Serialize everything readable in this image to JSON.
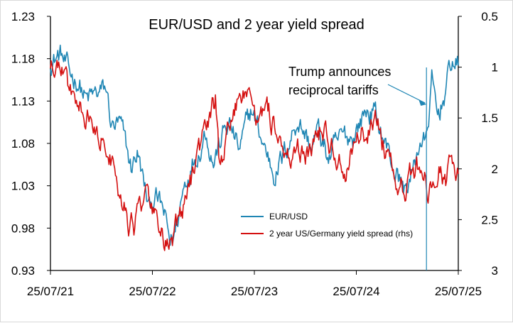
{
  "chart_data": {
    "type": "line",
    "title": "EUR/USD and 2 year yield spread",
    "xlabel": "",
    "ylabel": "",
    "x_tick_labels": [
      "25/07/21",
      "25/07/22",
      "25/07/23",
      "25/07/24",
      "25/07/25"
    ],
    "x_range": [
      "2021-07-25",
      "2025-07-25"
    ],
    "y_left": {
      "range": [
        0.93,
        1.23
      ],
      "ticks": [
        "0.93",
        "0.98",
        "1.03",
        "1.08",
        "1.13",
        "1.18",
        "1.23"
      ]
    },
    "y_right": {
      "range": [
        0.5,
        3
      ],
      "inverted": true,
      "ticks": [
        "0.5",
        "1",
        "1.5",
        "2",
        "2.5",
        "3"
      ]
    },
    "legend_position": "bottom-center",
    "annotation": {
      "text_lines": [
        "Trump announces",
        "reciprocal tariffs"
      ],
      "date": "2025-04-02"
    },
    "series": [
      {
        "name": "EUR/USD",
        "axis": "left",
        "color": "#1f86b4",
        "points": [
          [
            "2021-07-25",
            1.178
          ],
          [
            "2021-09-01",
            1.185
          ],
          [
            "2021-10-01",
            1.16
          ],
          [
            "2021-11-01",
            1.155
          ],
          [
            "2021-12-01",
            1.13
          ],
          [
            "2022-01-01",
            1.136
          ],
          [
            "2022-02-10",
            1.143
          ],
          [
            "2022-03-01",
            1.1
          ],
          [
            "2022-04-01",
            1.1
          ],
          [
            "2022-05-10",
            1.05
          ],
          [
            "2022-06-01",
            1.07
          ],
          [
            "2022-07-14",
            1.0
          ],
          [
            "2022-08-01",
            1.02
          ],
          [
            "2022-09-01",
            1.0
          ],
          [
            "2022-09-27",
            0.963
          ],
          [
            "2022-10-15",
            0.975
          ],
          [
            "2022-11-15",
            1.03
          ],
          [
            "2022-12-15",
            1.06
          ],
          [
            "2023-01-15",
            1.08
          ],
          [
            "2023-02-01",
            1.098
          ],
          [
            "2023-03-01",
            1.06
          ],
          [
            "2023-04-15",
            1.1
          ],
          [
            "2023-05-01",
            1.1
          ],
          [
            "2023-06-01",
            1.07
          ],
          [
            "2023-07-15",
            1.12
          ],
          [
            "2023-08-15",
            1.09
          ],
          [
            "2023-10-03",
            1.047
          ],
          [
            "2023-11-01",
            1.06
          ],
          [
            "2023-12-28",
            1.11
          ],
          [
            "2024-02-15",
            1.075
          ],
          [
            "2024-03-08",
            1.095
          ],
          [
            "2024-04-16",
            1.062
          ],
          [
            "2024-06-01",
            1.085
          ],
          [
            "2024-07-15",
            1.09
          ],
          [
            "2024-08-26",
            1.118
          ],
          [
            "2024-09-25",
            1.118
          ],
          [
            "2024-11-01",
            1.085
          ],
          [
            "2024-12-01",
            1.055
          ],
          [
            "2025-01-13",
            1.025
          ],
          [
            "2025-02-15",
            1.048
          ],
          [
            "2025-03-10",
            1.085
          ],
          [
            "2025-04-01",
            1.08
          ],
          [
            "2025-04-21",
            1.15
          ],
          [
            "2025-05-12",
            1.11
          ],
          [
            "2025-06-01",
            1.135
          ],
          [
            "2025-06-15",
            1.15
          ],
          [
            "2025-07-01",
            1.178
          ],
          [
            "2025-07-25",
            1.172
          ]
        ]
      },
      {
        "name": "2 year US/Germany yield spread (rhs)",
        "axis": "right",
        "color": "#d41010",
        "points": [
          [
            "2021-07-25",
            1.0
          ],
          [
            "2021-09-01",
            1.0
          ],
          [
            "2021-10-01",
            1.2
          ],
          [
            "2021-11-01",
            1.4
          ],
          [
            "2021-12-01",
            1.45
          ],
          [
            "2022-01-01",
            1.6
          ],
          [
            "2022-02-01",
            1.7
          ],
          [
            "2022-03-01",
            1.9
          ],
          [
            "2022-03-15",
            2.1
          ],
          [
            "2022-04-15",
            2.35
          ],
          [
            "2022-05-01",
            2.5
          ],
          [
            "2022-05-20",
            2.55
          ],
          [
            "2022-06-15",
            2.4
          ],
          [
            "2022-07-10",
            2.3
          ],
          [
            "2022-08-15",
            2.5
          ],
          [
            "2022-09-10",
            2.7
          ],
          [
            "2022-10-05",
            2.78
          ],
          [
            "2022-11-01",
            2.5
          ],
          [
            "2022-12-01",
            2.2
          ],
          [
            "2023-01-01",
            2.0
          ],
          [
            "2023-02-01",
            1.7
          ],
          [
            "2023-03-08",
            1.35
          ],
          [
            "2023-03-20",
            1.9
          ],
          [
            "2023-04-20",
            1.7
          ],
          [
            "2023-05-15",
            1.4
          ],
          [
            "2023-06-15",
            1.3
          ],
          [
            "2023-07-01",
            1.35
          ],
          [
            "2023-08-15",
            1.5
          ],
          [
            "2023-09-15",
            1.5
          ],
          [
            "2023-10-15",
            1.6
          ],
          [
            "2023-11-15",
            1.8
          ],
          [
            "2023-12-15",
            1.9
          ],
          [
            "2024-01-15",
            1.8
          ],
          [
            "2024-02-15",
            1.8
          ],
          [
            "2024-03-15",
            1.65
          ],
          [
            "2024-04-15",
            1.75
          ],
          [
            "2024-05-15",
            1.9
          ],
          [
            "2024-06-15",
            1.95
          ],
          [
            "2024-07-15",
            1.8
          ],
          [
            "2024-08-15",
            1.65
          ],
          [
            "2024-09-15",
            1.55
          ],
          [
            "2024-10-10",
            1.45
          ],
          [
            "2024-10-25",
            1.7
          ],
          [
            "2024-11-15",
            1.95
          ],
          [
            "2024-12-01",
            2.05
          ],
          [
            "2024-12-20",
            2.15
          ],
          [
            "2025-01-15",
            2.2
          ],
          [
            "2025-02-01",
            2.1
          ],
          [
            "2025-03-01",
            2.0
          ],
          [
            "2025-03-20",
            1.95
          ],
          [
            "2025-04-05",
            2.15
          ],
          [
            "2025-05-01",
            2.05
          ],
          [
            "2025-05-20",
            1.95
          ],
          [
            "2025-06-10",
            2.15
          ],
          [
            "2025-06-25",
            1.95
          ],
          [
            "2025-07-10",
            2.05
          ],
          [
            "2025-07-25",
            2.05
          ]
        ]
      }
    ]
  }
}
